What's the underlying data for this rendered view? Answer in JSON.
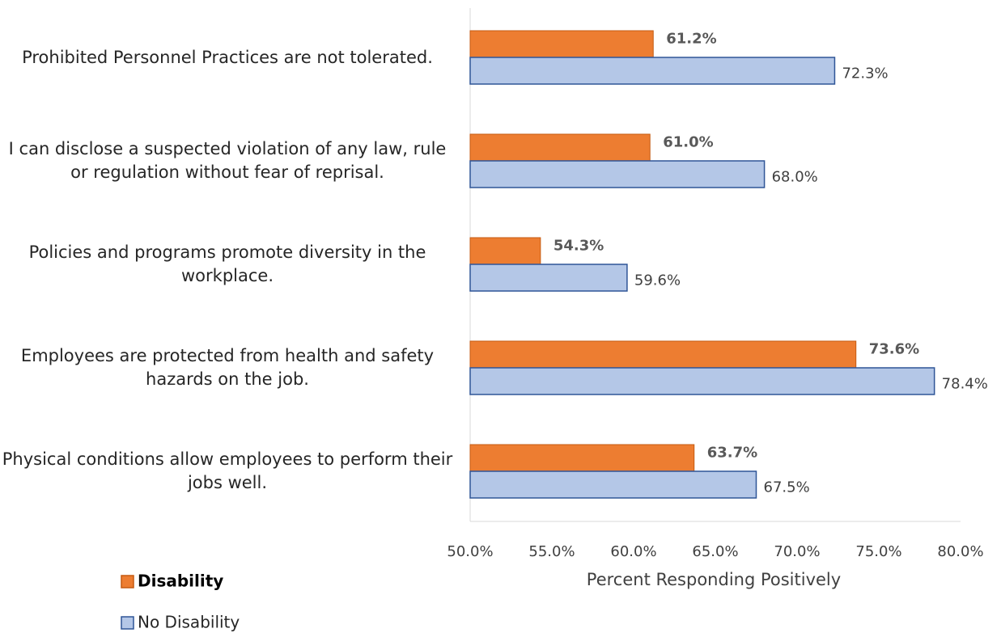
{
  "chart_data": {
    "type": "bar",
    "orientation": "horizontal",
    "categories": [
      "Prohibited Personnel Practices are not tolerated.",
      "I can disclose a suspected violation of any law, rule or regulation without fear of reprisal.",
      "Policies and programs promote diversity in the workplace.",
      "Employees are protected from health and safety hazards on the job.",
      "Physical conditions allow employees to perform their jobs well."
    ],
    "series": [
      {
        "name": "Disability",
        "color": "#ED7D31",
        "values": [
          61.2,
          61.0,
          54.3,
          73.6,
          63.7
        ],
        "value_labels": [
          "61.2%",
          "61.0%",
          "54.3%",
          "73.6%",
          "63.7%"
        ]
      },
      {
        "name": "No Disability",
        "color": "#B4C7E7",
        "values": [
          72.3,
          68.0,
          59.6,
          78.4,
          67.5
        ],
        "value_labels": [
          "72.3%",
          "68.0%",
          "59.6%",
          "78.4%",
          "67.5%"
        ]
      }
    ],
    "xlabel": "Percent Responding Positively",
    "xlim": [
      50,
      80
    ],
    "xticks": [
      {
        "value": 50,
        "label": "50.0%"
      },
      {
        "value": 55,
        "label": "55.0%"
      },
      {
        "value": 60,
        "label": "60.0%"
      },
      {
        "value": 65,
        "label": "65.0%"
      },
      {
        "value": 70,
        "label": "70.0%"
      },
      {
        "value": 75,
        "label": "75.0%"
      },
      {
        "value": 80,
        "label": "80.0%"
      }
    ],
    "grid": false,
    "legend": "bottom-left"
  }
}
